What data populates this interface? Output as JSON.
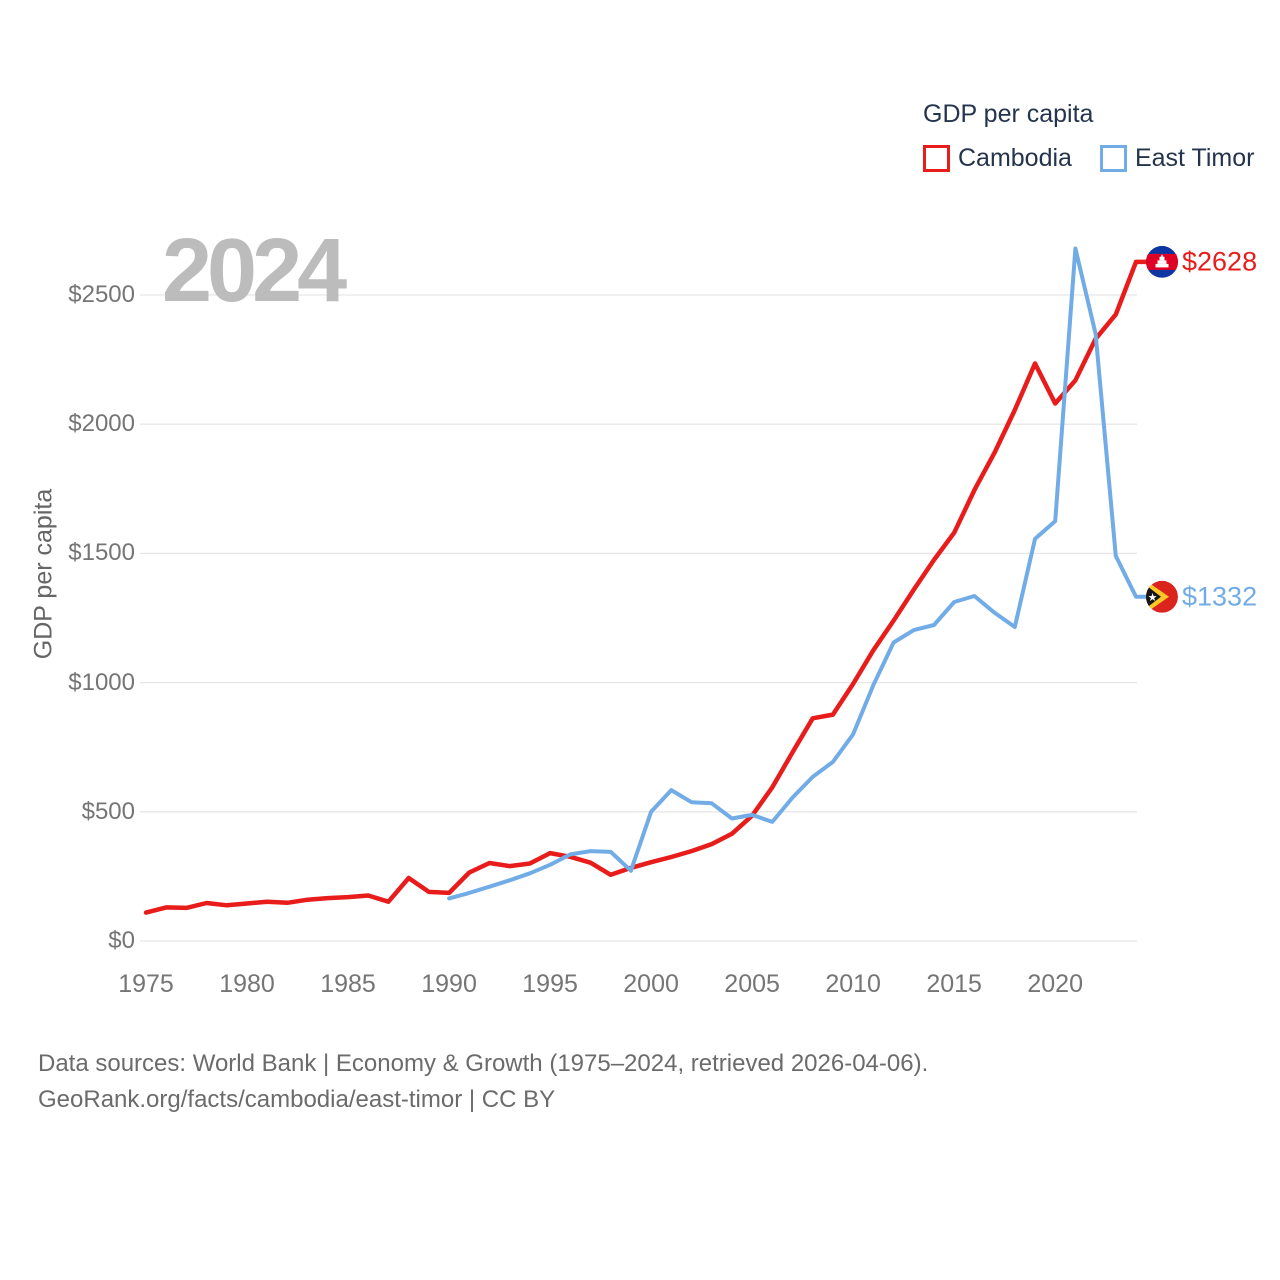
{
  "legend": {
    "title": "GDP per capita",
    "entries": [
      {
        "id": "cambodia",
        "label": "Cambodia",
        "color": "#e81c1a"
      },
      {
        "id": "east-timor",
        "label": "East Timor",
        "color": "#71ace6"
      }
    ]
  },
  "watermark_year": "2024",
  "y_axis_title": "GDP per capita",
  "footer": {
    "line1": "Data sources: World Bank | Economy & Growth (1975–2024, retrieved 2026-04-06).",
    "line2": "GeoRank.org/facts/cambodia/east-timor | CC BY"
  },
  "chart_data": {
    "type": "line",
    "title": "GDP per capita",
    "ylabel": "GDP per capita",
    "xlabel": "",
    "grid": "horizontal",
    "legend_position": "top-right",
    "xlim": [
      1975,
      2024
    ],
    "ylim": [
      0,
      2700
    ],
    "xticks": [
      1975,
      1980,
      1985,
      1990,
      1995,
      2000,
      2005,
      2010,
      2015,
      2020
    ],
    "yticks": [
      0,
      500,
      1000,
      1500,
      2000,
      2500
    ],
    "ytick_labels": [
      "$0",
      "$500",
      "$1000",
      "$1500",
      "$2000",
      "$2500"
    ],
    "x": [
      1975,
      1976,
      1977,
      1978,
      1979,
      1980,
      1981,
      1982,
      1983,
      1984,
      1985,
      1986,
      1987,
      1988,
      1989,
      1990,
      1991,
      1992,
      1993,
      1994,
      1995,
      1996,
      1997,
      1998,
      1999,
      2000,
      2001,
      2002,
      2003,
      2004,
      2005,
      2006,
      2007,
      2008,
      2009,
      2010,
      2011,
      2012,
      2013,
      2014,
      2015,
      2016,
      2017,
      2018,
      2019,
      2020,
      2021,
      2022,
      2023,
      2024
    ],
    "series": [
      {
        "id": "cambodia",
        "name": "Cambodia",
        "color": "#e81c1a",
        "end_label": "$2628",
        "end_value": 2628,
        "values": [
          110,
          130,
          128,
          147,
          138,
          145,
          152,
          148,
          160,
          166,
          170,
          176,
          152,
          244,
          190,
          186,
          265,
          302,
          290,
          300,
          340,
          326,
          303,
          256,
          283,
          305,
          325,
          348,
          375,
          415,
          485,
          595,
          730,
          862,
          876,
          995,
          1125,
          1240,
          1360,
          1475,
          1580,
          1745,
          1890,
          2055,
          2235,
          2080,
          2170,
          2330,
          2425,
          2628
        ]
      },
      {
        "id": "east-timor",
        "name": "East Timor",
        "color": "#71ace6",
        "end_label": "$1332",
        "end_value": 1332,
        "values": [
          null,
          null,
          null,
          null,
          null,
          null,
          null,
          null,
          null,
          null,
          null,
          null,
          null,
          null,
          null,
          165,
          186,
          210,
          235,
          262,
          295,
          335,
          348,
          345,
          272,
          500,
          584,
          537,
          533,
          474,
          488,
          461,
          555,
          635,
          693,
          800,
          990,
          1155,
          1203,
          1223,
          1312,
          1335,
          1270,
          1215,
          1556,
          1625,
          2680,
          2350,
          1490,
          1332
        ]
      }
    ]
  }
}
